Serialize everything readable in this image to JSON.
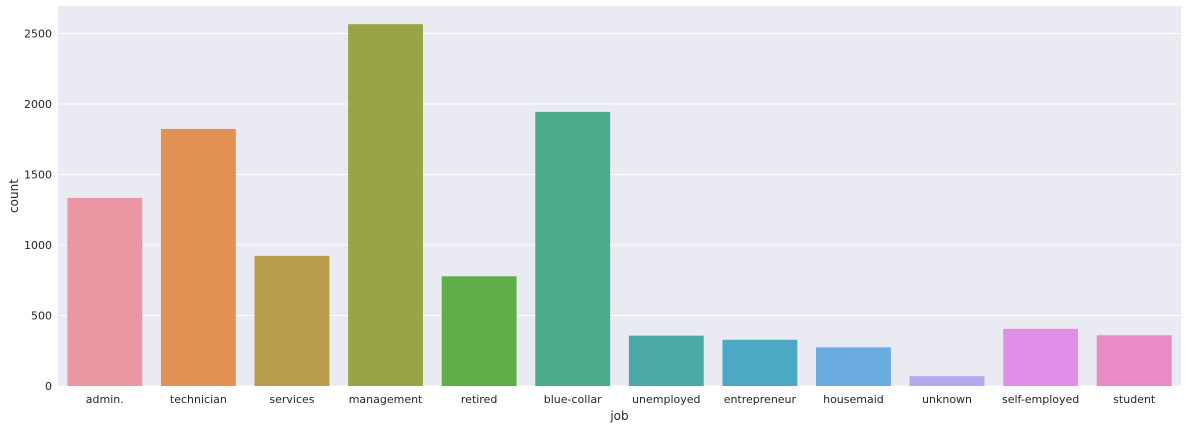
{
  "chart_data": {
    "type": "bar",
    "title": "",
    "xlabel": "job",
    "ylabel": "count",
    "categories": [
      "admin.",
      "technician",
      "services",
      "management",
      "retired",
      "blue-collar",
      "unemployed",
      "entrepreneur",
      "housemaid",
      "unknown",
      "self-employed",
      "student"
    ],
    "values": [
      1334,
      1823,
      923,
      2566,
      778,
      1944,
      357,
      328,
      274,
      70,
      405,
      360
    ],
    "colors": [
      "#ea96a3",
      "#e19153",
      "#b89c49",
      "#99a444",
      "#5fae47",
      "#4aac8a",
      "#4aaaa6",
      "#4ba9c6",
      "#6aace2",
      "#b4a9ea",
      "#df8fe8",
      "#e98cc6"
    ],
    "yticks": [
      0,
      500,
      1000,
      1500,
      2000,
      2500
    ],
    "ylim": [
      0,
      2695
    ],
    "grid": true,
    "background": "#eaeaf2",
    "grid_color": "#ffffff"
  }
}
